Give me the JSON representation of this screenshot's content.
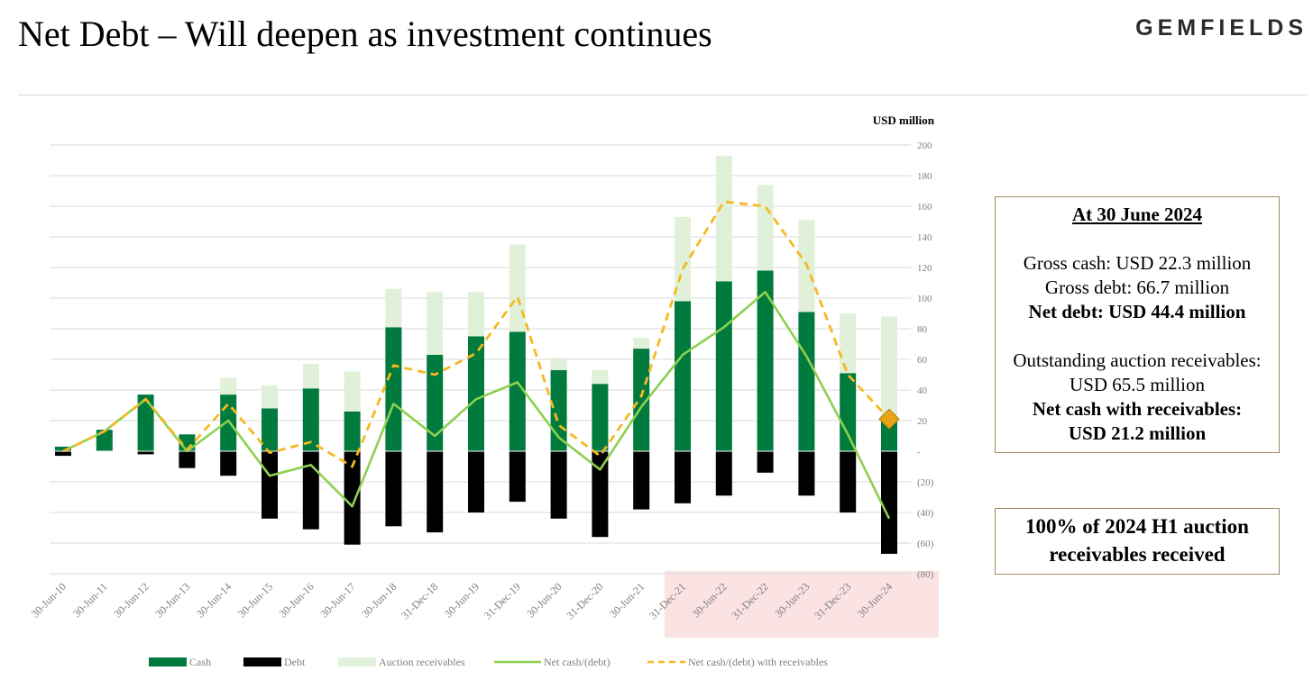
{
  "header": {
    "title": "Net Debt – Will deepen as investment continues",
    "logo": "GEMFIELDS"
  },
  "chart_data": {
    "type": "bar",
    "stacked": true,
    "title": "",
    "unit_label": "USD million",
    "ylim": [
      -80,
      200
    ],
    "yticks": [
      {
        "value": 200,
        "label": "200"
      },
      {
        "value": 180,
        "label": "180"
      },
      {
        "value": 160,
        "label": "160"
      },
      {
        "value": 140,
        "label": "140"
      },
      {
        "value": 120,
        "label": "120"
      },
      {
        "value": 100,
        "label": "100"
      },
      {
        "value": 80,
        "label": "80"
      },
      {
        "value": 60,
        "label": "60"
      },
      {
        "value": 40,
        "label": "40"
      },
      {
        "value": 20,
        "label": "20"
      },
      {
        "value": 0,
        "label": "-"
      },
      {
        "value": -20,
        "label": "(20)"
      },
      {
        "value": -40,
        "label": "(40)"
      },
      {
        "value": -60,
        "label": "(60)"
      },
      {
        "value": -80,
        "label": "(80)"
      }
    ],
    "grid": true,
    "legend_position": "bottom",
    "categories": [
      "30-Jun-10",
      "30-Jun-11",
      "30-Jun-12",
      "30-Jun-13",
      "30-Jun-14",
      "30-Jun-15",
      "30-Jun-16",
      "30-Jun-17",
      "30-Jun-18",
      "31-Dec-18",
      "30-Jun-19",
      "31-Dec-19",
      "30-Jun-20",
      "31-Dec-20",
      "30-Jun-21",
      "31-Dec-21",
      "30-Jun-22",
      "31-Dec-22",
      "30-Jun-23",
      "31-Dec-23",
      "30-Jun-24"
    ],
    "highlight_range": [
      "31-Dec-21",
      "30-Jun-24"
    ],
    "series": [
      {
        "name": "Cash",
        "kind": "bar",
        "color": "#007a3d",
        "values": [
          3,
          14,
          37,
          11,
          37,
          28,
          41,
          26,
          81,
          63,
          75,
          78,
          53,
          44,
          67,
          98,
          111,
          118,
          91,
          51,
          22
        ]
      },
      {
        "name": "Debt",
        "kind": "bar",
        "color": "#000000",
        "values": [
          -3,
          0,
          -2,
          -11,
          -16,
          -44,
          -51,
          -61,
          -49,
          -53,
          -40,
          -33,
          -44,
          -56,
          -38,
          -34,
          -29,
          -14,
          -29,
          -40,
          -67
        ]
      },
      {
        "name": "Auction receivables",
        "kind": "bar",
        "color": "#e1f0d8",
        "values": [
          0,
          0,
          0,
          0,
          11,
          15,
          16,
          26,
          25,
          41,
          29,
          57,
          8,
          9,
          7,
          55,
          82,
          56,
          60,
          39,
          66
        ]
      },
      {
        "name": "Net cash/(debt)",
        "kind": "line",
        "color": "#8dd050",
        "values": [
          0,
          13,
          34,
          0,
          20,
          -16,
          -9,
          -36,
          31,
          10,
          34,
          45,
          9,
          -12,
          29,
          63,
          81,
          104,
          62,
          11,
          -44
        ]
      },
      {
        "name": "Net cash/(debt) with receivables",
        "kind": "dashed-line",
        "color": "#f5b921",
        "values": [
          0,
          13,
          34,
          1,
          31,
          -1,
          6,
          -10,
          56,
          50,
          64,
          101,
          17,
          -3,
          36,
          119,
          163,
          160,
          122,
          50,
          21
        ]
      }
    ],
    "marker": {
      "category": "30-Jun-24",
      "value": 21,
      "shape": "diamond",
      "color": "#e8a317"
    }
  },
  "info_box": {
    "heading": "At 30 June 2024",
    "gross_cash": "Gross cash: USD 22.3 million",
    "gross_debt": "Gross debt: 66.7 million",
    "net_debt": "Net debt: USD 44.4 million",
    "receivables_line1": "Outstanding auction receivables:",
    "receivables_line2": "USD 65.5 million",
    "net_cash_line1": "Net cash with receivables:",
    "net_cash_line2": "USD 21.2 million"
  },
  "callout": {
    "line1": "100% of 2024 H1 auction",
    "line2": "receivables received"
  }
}
